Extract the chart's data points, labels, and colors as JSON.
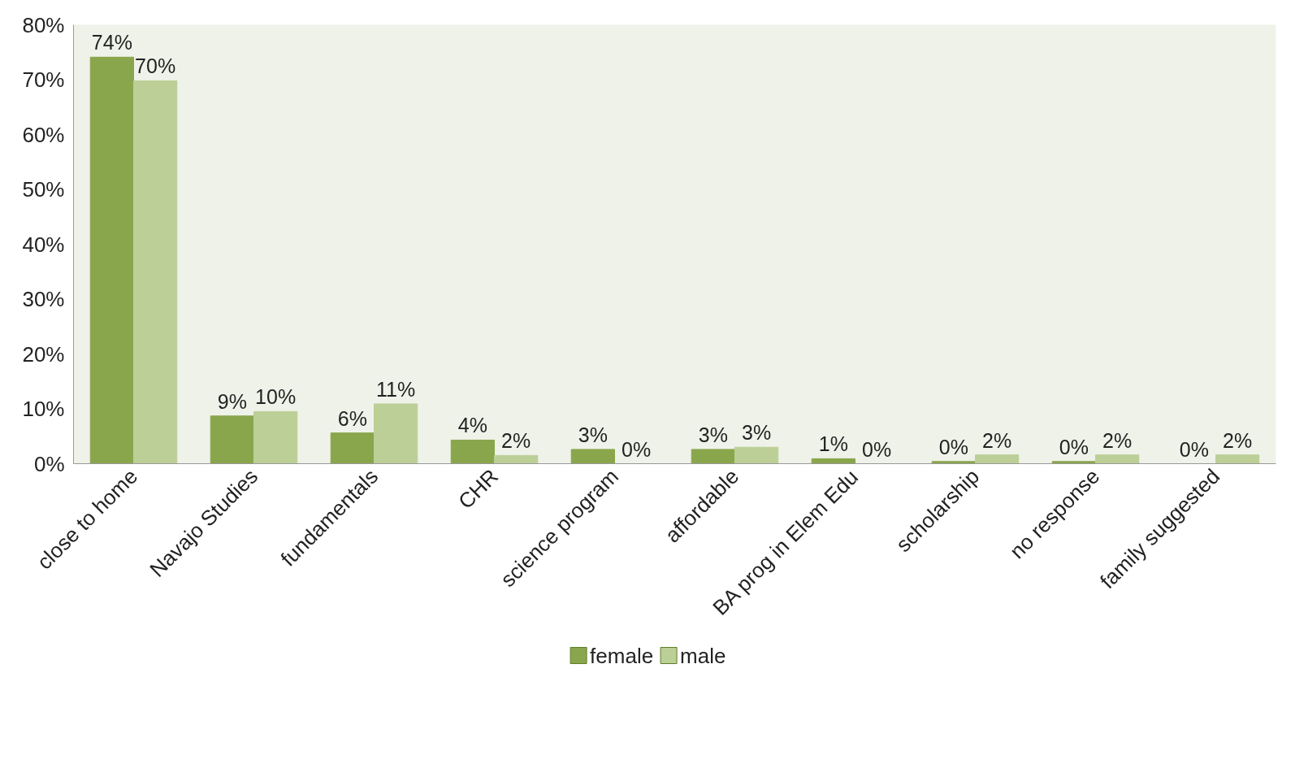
{
  "chart_data": {
    "type": "bar",
    "categories": [
      "close to home",
      "Navajo Studies",
      "fundamentals",
      "CHR",
      "science program",
      "affordable",
      "BA prog in Elem Edu",
      "scholarship",
      "no response",
      "family suggested"
    ],
    "series": [
      {
        "name": "female",
        "color": "#8aa64c",
        "values": [
          74.1,
          8.7,
          5.6,
          4.3,
          2.6,
          2.6,
          0.9,
          0.4,
          0.4,
          0
        ],
        "value_labels": [
          "74%",
          "9%",
          "6%",
          "4%",
          "3%",
          "3%",
          "1%",
          "0%",
          "0%",
          "0%"
        ]
      },
      {
        "name": "male",
        "color": "#bccf97",
        "values": [
          69.8,
          9.5,
          10.9,
          1.5,
          0,
          3.0,
          0,
          1.6,
          1.6,
          1.6
        ],
        "value_labels": [
          "70%",
          "10%",
          "11%",
          "2%",
          "0%",
          "3%",
          "0%",
          "2%",
          "2%",
          "2%"
        ]
      }
    ],
    "ylim": [
      0,
      80
    ],
    "yticks": [
      {
        "value": 0,
        "label": "0%"
      },
      {
        "value": 10,
        "label": "10%"
      },
      {
        "value": 20,
        "label": "20%"
      },
      {
        "value": 30,
        "label": "30%"
      },
      {
        "value": 40,
        "label": "40%"
      },
      {
        "value": 50,
        "label": "50%"
      },
      {
        "value": 60,
        "label": "60%"
      },
      {
        "value": 70,
        "label": "70%"
      },
      {
        "value": 80,
        "label": "80%"
      }
    ],
    "grid": false,
    "legend": "bottom"
  }
}
